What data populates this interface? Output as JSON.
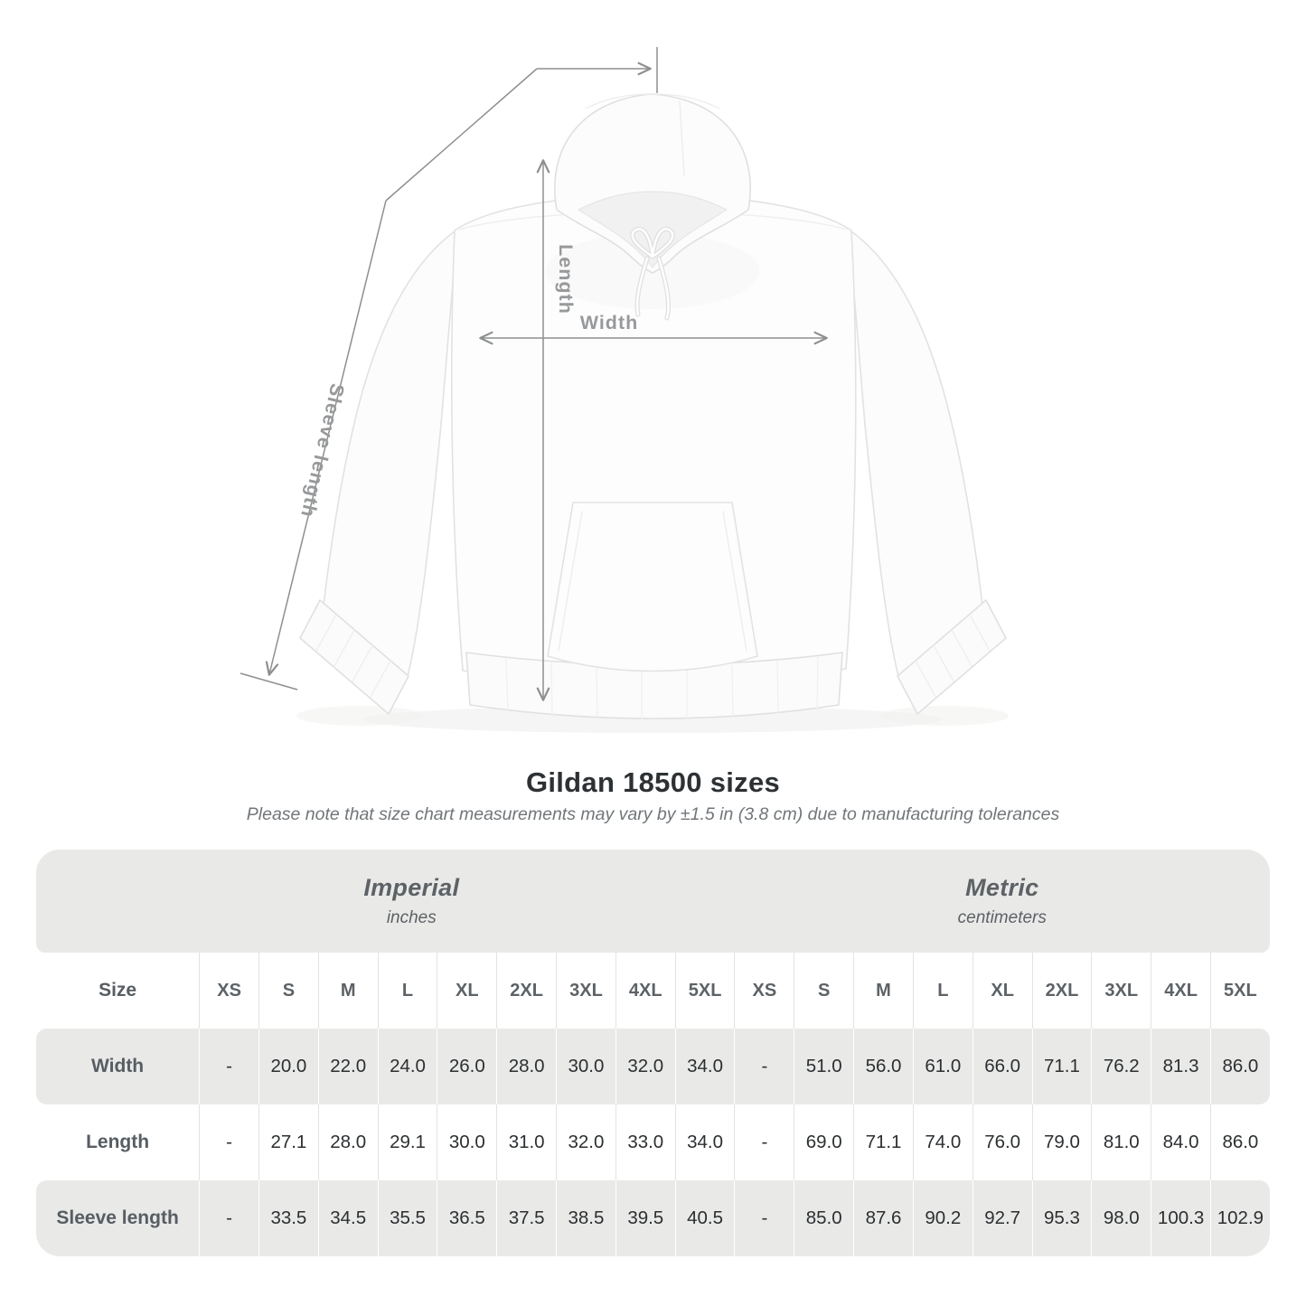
{
  "diagram": {
    "length_label": "Length",
    "width_label": "Width",
    "sleeve_label": "Sleeve length",
    "line_color": "#8d8f90",
    "label_color": "#97999b"
  },
  "chart_data": {
    "type": "table",
    "title": "Gildan 18500 sizes",
    "note": "Please note that size chart measurements may vary by ±1.5 in (3.8 cm) due to manufacturing tolerances",
    "size_label": "Size",
    "sizes": [
      "XS",
      "S",
      "M",
      "L",
      "XL",
      "2XL",
      "3XL",
      "4XL",
      "5XL"
    ],
    "unit_groups": [
      {
        "name": "Imperial",
        "unit": "inches"
      },
      {
        "name": "Metric",
        "unit": "centimeters"
      }
    ],
    "rows": [
      {
        "label": "Width",
        "imperial": [
          "-",
          "20.0",
          "22.0",
          "24.0",
          "26.0",
          "28.0",
          "30.0",
          "32.0",
          "34.0"
        ],
        "metric": [
          "-",
          "51.0",
          "56.0",
          "61.0",
          "66.0",
          "71.1",
          "76.2",
          "81.3",
          "86.0"
        ]
      },
      {
        "label": "Length",
        "imperial": [
          "-",
          "27.1",
          "28.0",
          "29.1",
          "30.0",
          "31.0",
          "32.0",
          "33.0",
          "34.0"
        ],
        "metric": [
          "-",
          "69.0",
          "71.1",
          "74.0",
          "76.0",
          "79.0",
          "81.0",
          "84.0",
          "86.0"
        ]
      },
      {
        "label": "Sleeve length",
        "imperial": [
          "-",
          "33.5",
          "34.5",
          "35.5",
          "36.5",
          "37.5",
          "38.5",
          "39.5",
          "40.5"
        ],
        "metric": [
          "-",
          "85.0",
          "87.6",
          "90.2",
          "92.7",
          "95.3",
          "98.0",
          "100.3",
          "102.9"
        ]
      }
    ]
  },
  "colors": {
    "stripe": "#e9e9e8",
    "value_text": "#2c2f31",
    "row_label_text": "#575d62",
    "measurement_line": "#8d8f90"
  }
}
